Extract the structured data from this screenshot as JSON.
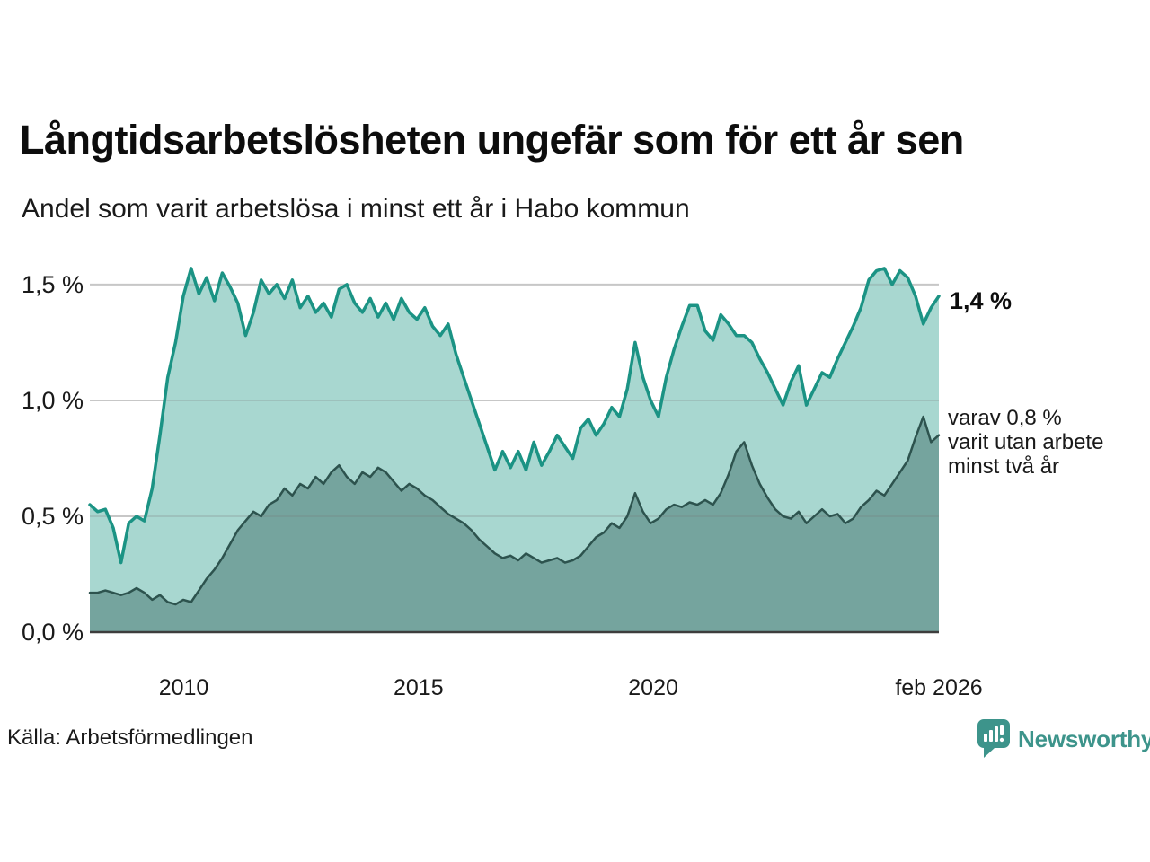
{
  "chart_data": {
    "type": "area",
    "title": "Långtidsarbetslösheten ungefär som för ett år sen",
    "subtitle": "Andel som varit arbetslösa i minst ett år i Habo kommun",
    "unit": "%",
    "grid": "horizontal",
    "legend_position": "end-of-line-labels",
    "x_range": [
      2008.0,
      2026.083
    ],
    "ylim": [
      0,
      1.585
    ],
    "x_ticks": [
      {
        "x": 2010,
        "label": "2010"
      },
      {
        "x": 2015,
        "label": "2015"
      },
      {
        "x": 2020,
        "label": "2020"
      },
      {
        "x": 2026.083,
        "label": "feb 2026"
      }
    ],
    "y_ticks": [
      {
        "y": 0.0,
        "label": "0,0 %"
      },
      {
        "y": 0.5,
        "label": "0,5 %"
      },
      {
        "y": 1.0,
        "label": "1,0 %"
      },
      {
        "y": 1.5,
        "label": "1,5 %"
      }
    ],
    "colors": {
      "grid": "#dedede",
      "grid_overlay": "rgba(120,120,120,0.22)",
      "axis": "#3d3d3d"
    },
    "series": [
      {
        "name": "arbetslösa minst ett år",
        "end_label": "1,4 %",
        "line_color": "#1b9384",
        "fill_color": "#a8d7d0",
        "line_width": 3.5,
        "values": [
          0.55,
          0.52,
          0.53,
          0.45,
          0.3,
          0.47,
          0.5,
          0.48,
          0.62,
          0.85,
          1.1,
          1.25,
          1.45,
          1.57,
          1.46,
          1.53,
          1.43,
          1.55,
          1.49,
          1.42,
          1.28,
          1.38,
          1.52,
          1.46,
          1.5,
          1.44,
          1.52,
          1.4,
          1.45,
          1.38,
          1.42,
          1.36,
          1.48,
          1.5,
          1.42,
          1.38,
          1.44,
          1.36,
          1.42,
          1.35,
          1.44,
          1.38,
          1.35,
          1.4,
          1.32,
          1.28,
          1.33,
          1.2,
          1.1,
          1.0,
          0.9,
          0.8,
          0.7,
          0.78,
          0.71,
          0.78,
          0.7,
          0.82,
          0.72,
          0.78,
          0.85,
          0.8,
          0.75,
          0.88,
          0.92,
          0.85,
          0.9,
          0.97,
          0.93,
          1.05,
          1.25,
          1.1,
          1.0,
          0.93,
          1.1,
          1.22,
          1.32,
          1.41,
          1.41,
          1.3,
          1.26,
          1.37,
          1.33,
          1.28,
          1.28,
          1.25,
          1.18,
          1.12,
          1.05,
          0.98,
          1.08,
          1.15,
          0.98,
          1.05,
          1.12,
          1.1,
          1.18,
          1.25,
          1.32,
          1.4,
          1.52,
          1.56,
          1.57,
          1.5,
          1.56,
          1.53,
          1.45,
          1.33,
          1.4,
          1.45
        ]
      },
      {
        "name": "varav utan arbete minst två år",
        "end_label": "varav 0,8 % varit utan arbete minst två år",
        "line_color": "#2d534e",
        "fill_color": "#75a49e",
        "line_width": 2.5,
        "values": [
          0.17,
          0.17,
          0.18,
          0.17,
          0.16,
          0.17,
          0.19,
          0.17,
          0.14,
          0.16,
          0.13,
          0.12,
          0.14,
          0.13,
          0.18,
          0.23,
          0.27,
          0.32,
          0.38,
          0.44,
          0.48,
          0.52,
          0.5,
          0.55,
          0.57,
          0.62,
          0.59,
          0.64,
          0.62,
          0.67,
          0.64,
          0.69,
          0.72,
          0.67,
          0.64,
          0.69,
          0.67,
          0.71,
          0.69,
          0.65,
          0.61,
          0.64,
          0.62,
          0.59,
          0.57,
          0.54,
          0.51,
          0.49,
          0.47,
          0.44,
          0.4,
          0.37,
          0.34,
          0.32,
          0.33,
          0.31,
          0.34,
          0.32,
          0.3,
          0.31,
          0.32,
          0.3,
          0.31,
          0.33,
          0.37,
          0.41,
          0.43,
          0.47,
          0.45,
          0.5,
          0.6,
          0.52,
          0.47,
          0.49,
          0.53,
          0.55,
          0.54,
          0.56,
          0.55,
          0.57,
          0.55,
          0.6,
          0.68,
          0.78,
          0.82,
          0.72,
          0.64,
          0.58,
          0.53,
          0.5,
          0.49,
          0.52,
          0.47,
          0.5,
          0.53,
          0.5,
          0.51,
          0.47,
          0.49,
          0.54,
          0.57,
          0.61,
          0.59,
          0.64,
          0.69,
          0.74,
          0.84,
          0.93,
          0.82,
          0.85
        ]
      }
    ]
  },
  "annotations": {
    "current_value": "1,4 %",
    "secondary_lines": [
      "varav 0,8 %",
      "varit utan arbete",
      "minst två år"
    ]
  },
  "footer": {
    "source": "Källa: Arbetsförmedlingen",
    "brand": "Newsworthy",
    "brand_color": "#3d948b",
    "logo_icon": "bar-chart-speech-bubble-icon"
  }
}
